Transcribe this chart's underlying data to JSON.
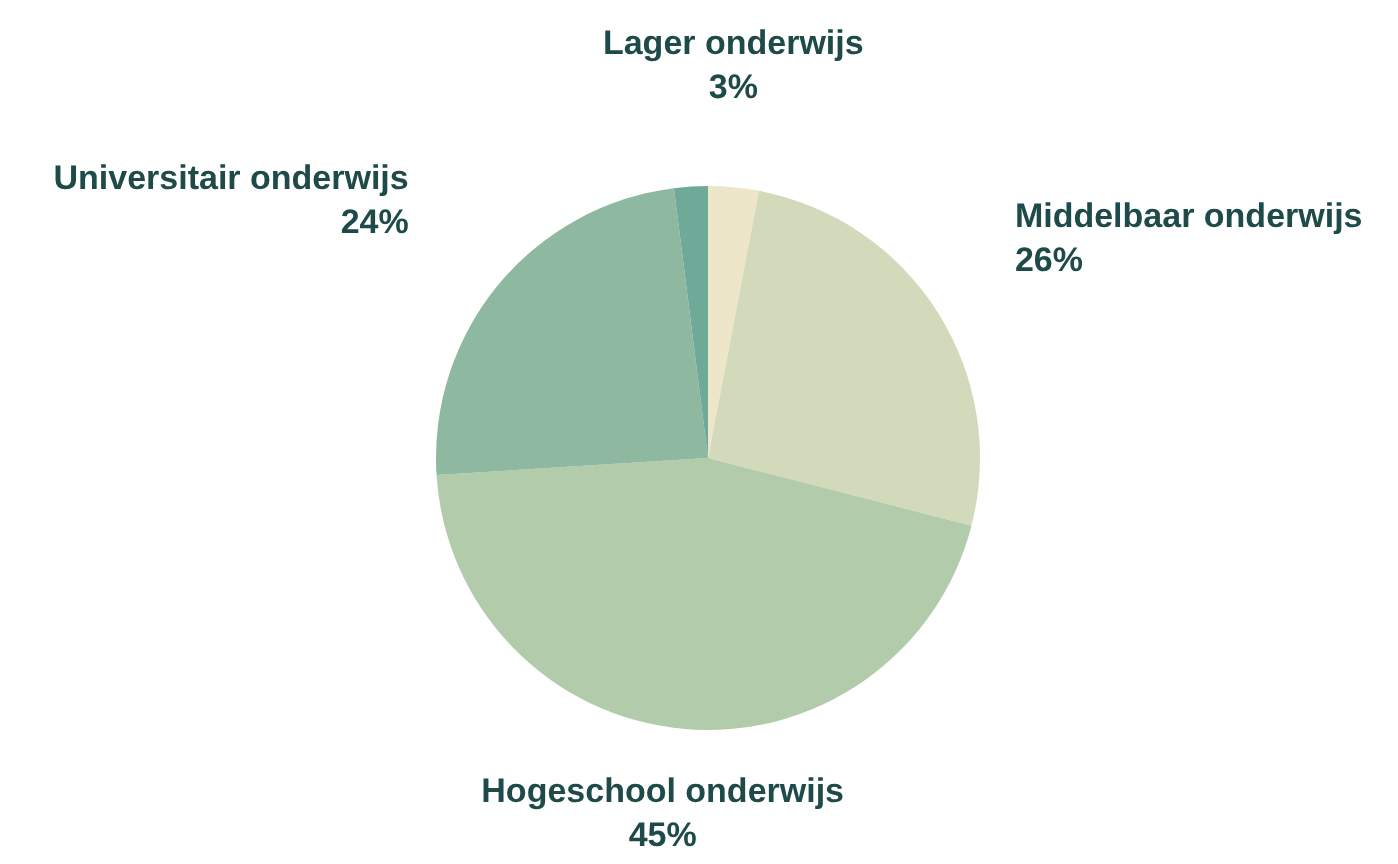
{
  "chart_data": {
    "type": "pie",
    "categories": [
      "Lager onderwijs",
      "Middelbaar onderwijs",
      "Hogeschool onderwijs",
      "Universitair onderwijs",
      null
    ],
    "values": [
      3,
      26,
      45,
      24,
      2
    ],
    "value_labels": [
      "3%",
      "26%",
      "45%",
      "24%",
      null
    ],
    "colors": [
      "#ede6c8",
      "#d3dabb",
      "#b1cbab",
      "#8fb8a0",
      "#6faa98"
    ],
    "legend": false
  }
}
